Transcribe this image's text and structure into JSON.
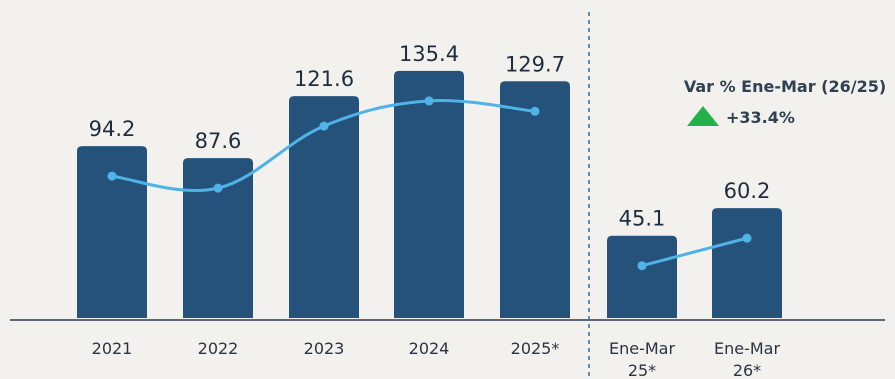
{
  "chart_data": {
    "type": "bar",
    "categories": [
      "2021",
      "2022",
      "2023",
      "2024",
      "2025*",
      "Ene-Mar 25*",
      "Ene-Mar 26*"
    ],
    "category_lines": [
      [
        "2021"
      ],
      [
        "2022"
      ],
      [
        "2023"
      ],
      [
        "2024"
      ],
      [
        "2025*"
      ],
      [
        "Ene-Mar",
        "25*"
      ],
      [
        "Ene-Mar",
        "26*"
      ]
    ],
    "series": [
      {
        "values": [
          94.2,
          87.6,
          121.6,
          135.4,
          129.7,
          45.1,
          60.2
        ]
      }
    ],
    "value_labels": [
      "94.2",
      "87.6",
      "121.6",
      "135.4",
      "129.7",
      "45.1",
      "60.2"
    ],
    "trend_groups": [
      [
        0,
        1,
        2,
        3,
        4
      ],
      [
        5,
        6
      ]
    ],
    "ylim": [
      0,
      150
    ],
    "grid": false,
    "annotation": {
      "title": "Var % Ene-Mar (26/25)",
      "value": "+33.4%",
      "direction": "up"
    },
    "colors": {
      "bar": "#24527a",
      "trend_line": "#4fb3e8",
      "arrow": "#21b34a",
      "divider": "#2e6f9e",
      "axis": "#2a3a4a",
      "background": "#f2f1ee"
    }
  }
}
